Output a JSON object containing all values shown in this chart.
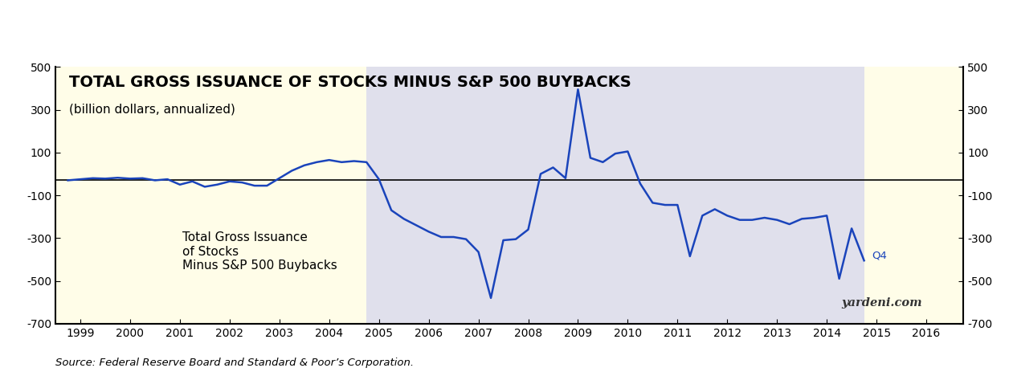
{
  "title": "TOTAL GROSS ISSUANCE OF STOCKS MINUS S&P 500 BUYBACKS",
  "subtitle": "(billion dollars, annualized)",
  "source": "Source: Federal Reserve Board and Standard & Poor’s Corporation.",
  "watermark": "yardeni.com",
  "annotation": "Total Gross Issuance\nof Stocks\nMinus S&P 500 Buybacks",
  "annotation_label": "Q4",
  "ylim": [
    -700,
    500
  ],
  "yticks": [
    -700,
    -500,
    -300,
    -100,
    100,
    300,
    500
  ],
  "background_color": "#FFFDE8",
  "shaded_background": "#E0E0EC",
  "line_color": "#1A44BB",
  "zero_line_color": "#000000",
  "title_fontsize": 14,
  "subtitle_fontsize": 11,
  "x_data": [
    1998.75,
    1999.0,
    1999.25,
    1999.5,
    1999.75,
    2000.0,
    2000.25,
    2000.5,
    2000.75,
    2001.0,
    2001.25,
    2001.5,
    2001.75,
    2002.0,
    2002.25,
    2002.5,
    2002.75,
    2003.0,
    2003.25,
    2003.5,
    2003.75,
    2004.0,
    2004.25,
    2004.5,
    2004.75,
    2005.0,
    2005.25,
    2005.5,
    2005.75,
    2006.0,
    2006.25,
    2006.5,
    2006.75,
    2007.0,
    2007.25,
    2007.5,
    2007.75,
    2008.0,
    2008.25,
    2008.5,
    2008.75,
    2009.0,
    2009.25,
    2009.5,
    2009.75,
    2010.0,
    2010.25,
    2010.5,
    2010.75,
    2011.0,
    2011.25,
    2011.5,
    2011.75,
    2012.0,
    2012.25,
    2012.5,
    2012.75,
    2013.0,
    2013.25,
    2013.5,
    2013.75,
    2014.0,
    2014.25,
    2014.5,
    2014.75
  ],
  "y_data": [
    -30,
    -25,
    -20,
    -22,
    -18,
    -22,
    -20,
    -30,
    -25,
    -50,
    -35,
    -60,
    -50,
    -35,
    -40,
    -55,
    -55,
    -20,
    15,
    40,
    55,
    65,
    55,
    60,
    55,
    -25,
    -170,
    -210,
    -240,
    -270,
    -295,
    -295,
    -305,
    -365,
    -580,
    -310,
    -305,
    -260,
    0,
    30,
    -20,
    395,
    75,
    55,
    95,
    105,
    -45,
    -135,
    -145,
    -145,
    -385,
    -195,
    -165,
    -195,
    -215,
    -215,
    -205,
    -215,
    -235,
    -210,
    -205,
    -195,
    -490,
    -255,
    -405
  ],
  "shaded_x_start": 2004.75,
  "shaded_x_end": 2014.75,
  "xmin": 1998.5,
  "xmax": 2016.75,
  "zero_line_y": -30,
  "xtick_positions": [
    1999,
    2000,
    2001,
    2002,
    2003,
    2004,
    2005,
    2006,
    2007,
    2008,
    2009,
    2010,
    2011,
    2012,
    2013,
    2014,
    2015,
    2016
  ],
  "xtick_labels": [
    "1999",
    "2000",
    "2001",
    "2002",
    "2003",
    "2004",
    "2005",
    "2006",
    "2007",
    "2008",
    "2009",
    "2010",
    "2011",
    "2012",
    "2013",
    "2014",
    "2015",
    "2016"
  ]
}
